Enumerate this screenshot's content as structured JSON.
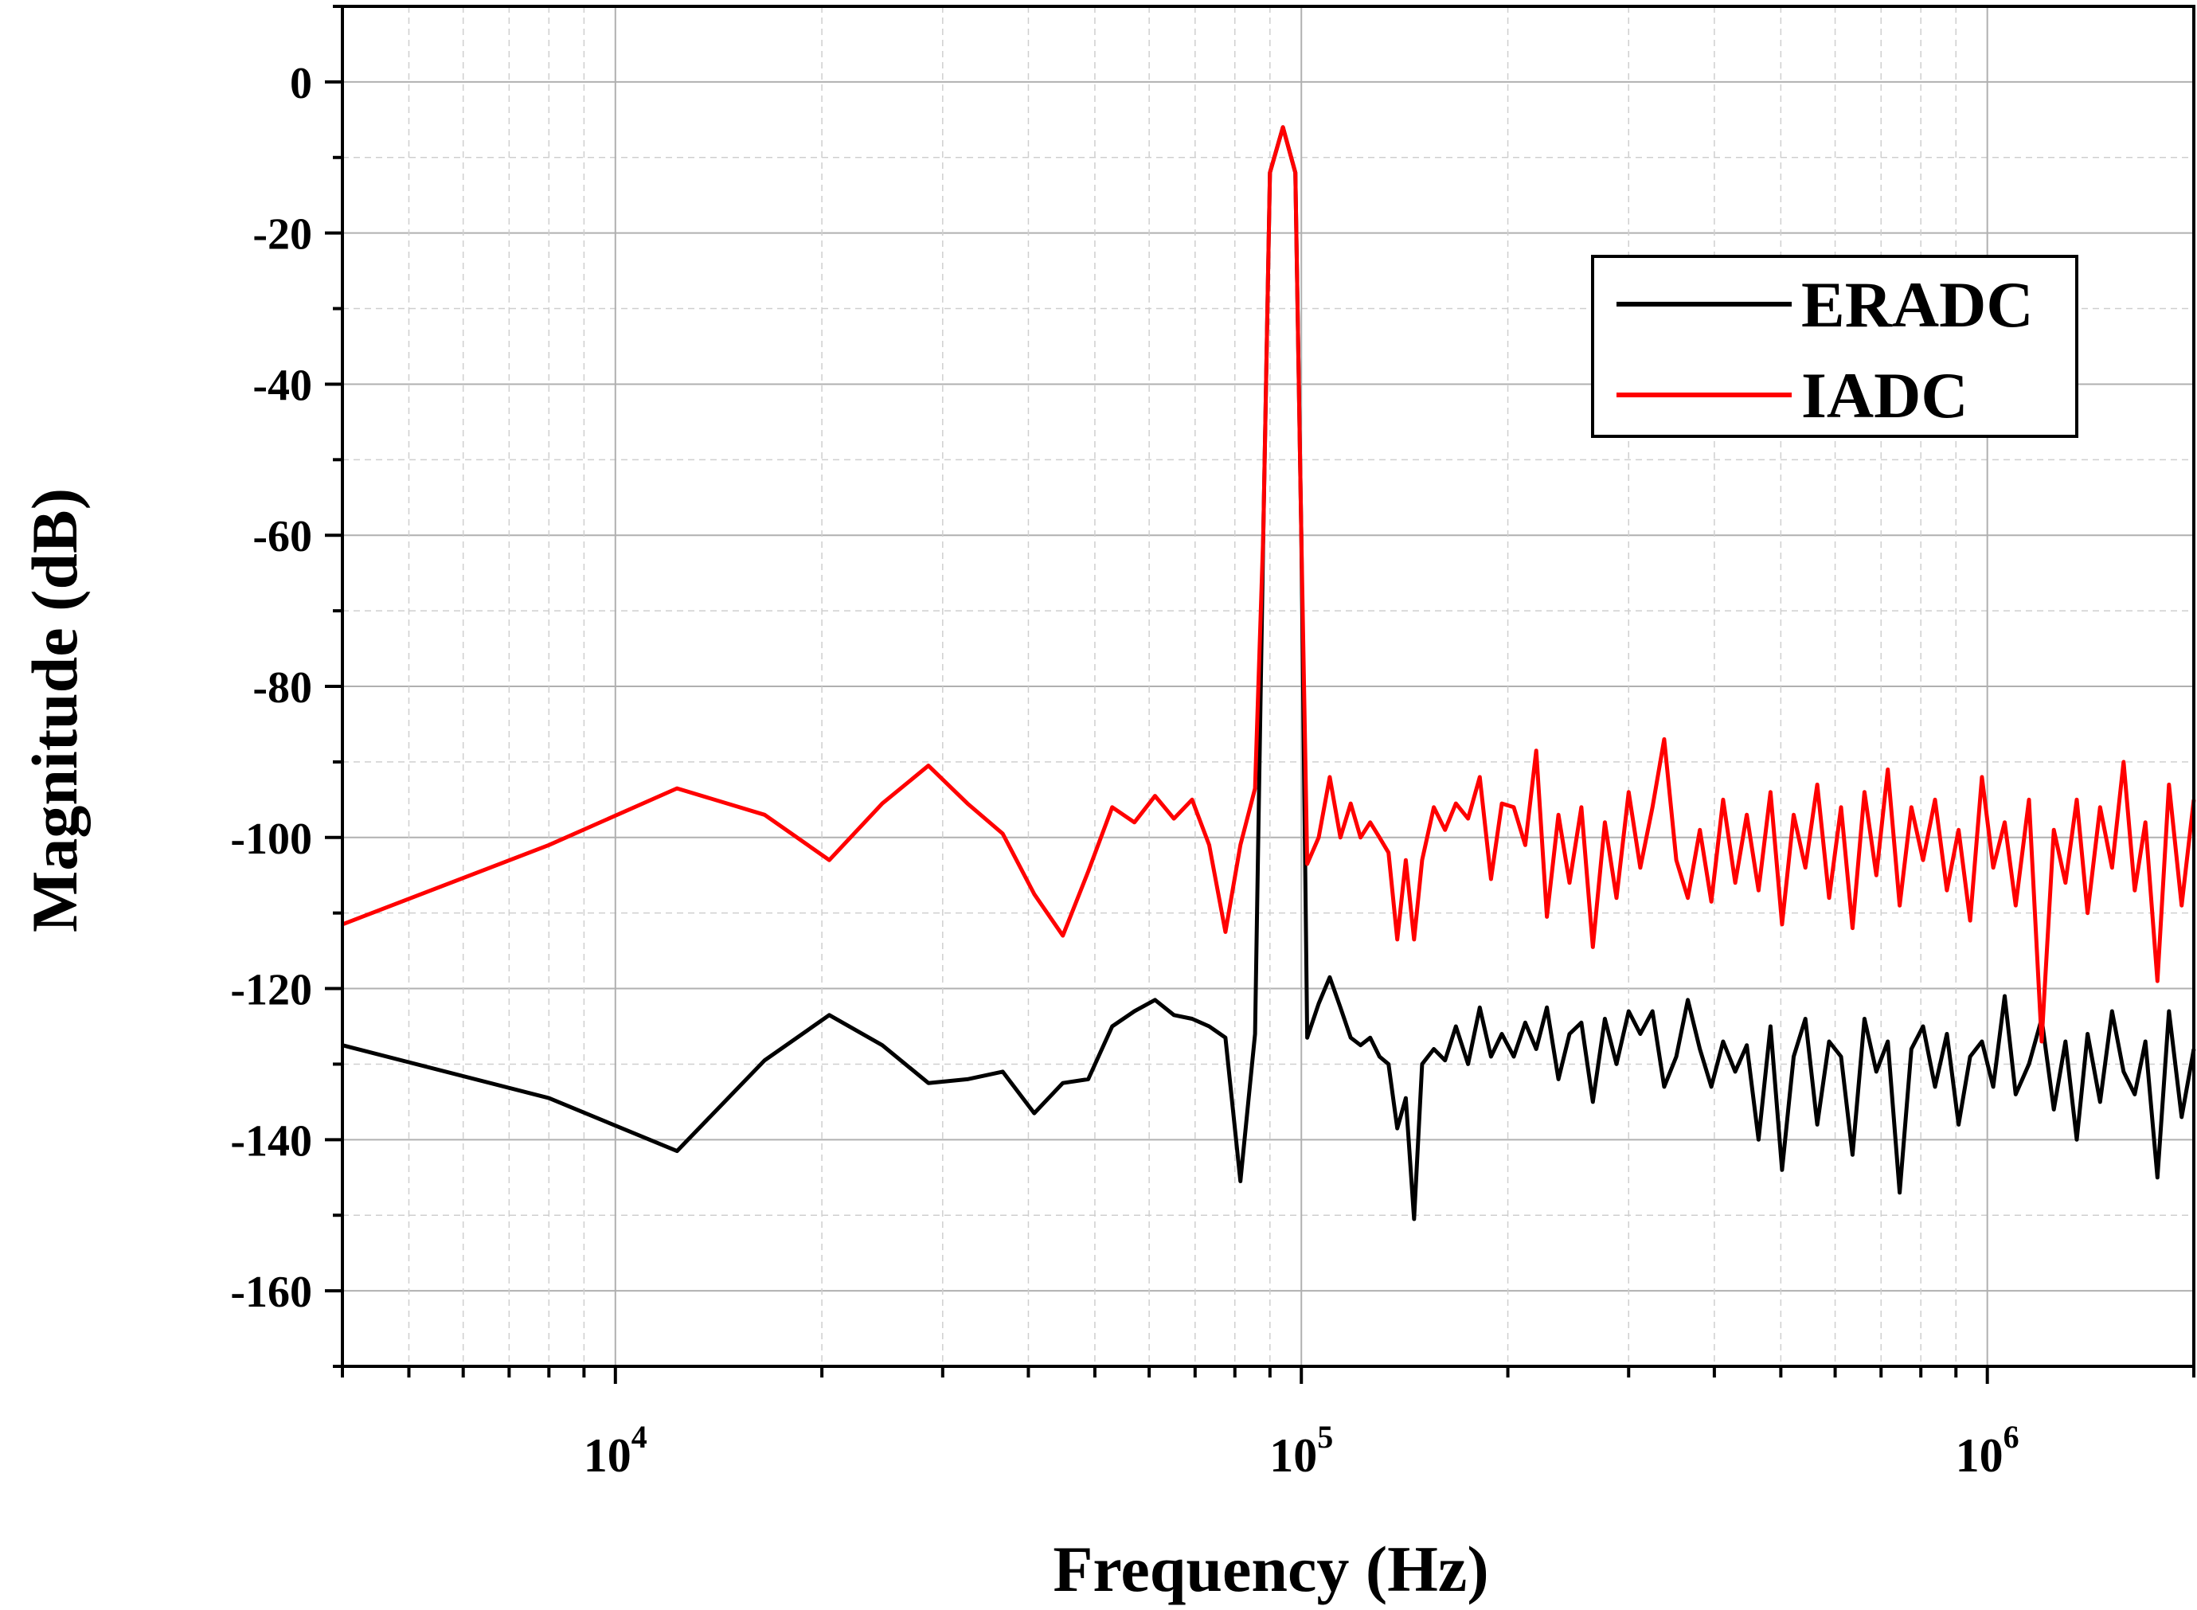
{
  "chart_data": {
    "type": "line",
    "title": "",
    "xlabel": "Frequency (Hz)",
    "ylabel": "Magnitude (dB)",
    "x_scale": "log",
    "xlim": [
      4000,
      2000000
    ],
    "ylim": [
      -170,
      10
    ],
    "x_ticks": [
      10000,
      100000,
      1000000
    ],
    "x_tick_labels": [
      {
        "base": "10",
        "exp": "4"
      },
      {
        "base": "10",
        "exp": "5"
      },
      {
        "base": "10",
        "exp": "6"
      }
    ],
    "y_ticks": [
      0,
      -20,
      -40,
      -60,
      -80,
      -100,
      -120,
      -140,
      -160
    ],
    "y_tick_labels": [
      "0",
      "-20",
      "-40",
      "-60",
      "-80",
      "-100",
      "-120",
      "-140",
      "-160"
    ],
    "grid": true,
    "legend_position": "top-right",
    "series": [
      {
        "name": "ERADC",
        "color": "#000000",
        "points": [
          [
            4000,
            -127.5
          ],
          [
            8000,
            -134.5
          ],
          [
            12300,
            -141.5
          ],
          [
            16500,
            -129.5
          ],
          [
            20500,
            -123.5
          ],
          [
            24500,
            -127.5
          ],
          [
            28600,
            -132.5
          ],
          [
            32600,
            -132
          ],
          [
            36700,
            -131
          ],
          [
            40800,
            -136.5
          ],
          [
            44900,
            -132.5
          ],
          [
            48900,
            -132
          ],
          [
            53000,
            -125
          ],
          [
            57100,
            -123
          ],
          [
            61200,
            -121.5
          ],
          [
            65200,
            -123.5
          ],
          [
            69300,
            -124
          ],
          [
            73400,
            -125
          ],
          [
            77500,
            -126.5
          ],
          [
            81500,
            -145.5
          ],
          [
            85600,
            -126
          ],
          [
            88000,
            -60
          ],
          [
            90000,
            -12
          ],
          [
            94000,
            -6
          ],
          [
            98000,
            -12
          ],
          [
            100000,
            -60
          ],
          [
            102000,
            -126.5
          ],
          [
            106000,
            -122
          ],
          [
            110000,
            -118.5
          ],
          [
            114000,
            -122.5
          ],
          [
            118000,
            -126.5
          ],
          [
            122000,
            -127.5
          ],
          [
            126000,
            -126.5
          ],
          [
            130000,
            -129
          ],
          [
            134000,
            -130
          ],
          [
            138000,
            -138.5
          ],
          [
            142000,
            -134.5
          ],
          [
            146000,
            -150.5
          ],
          [
            150000,
            -130
          ],
          [
            156000,
            -128
          ],
          [
            162000,
            -129.5
          ],
          [
            168000,
            -125
          ],
          [
            175000,
            -130
          ],
          [
            182000,
            -122.5
          ],
          [
            189000,
            -129
          ],
          [
            196000,
            -126
          ],
          [
            204000,
            -129
          ],
          [
            212000,
            -124.5
          ],
          [
            220000,
            -128
          ],
          [
            228000,
            -122.5
          ],
          [
            237000,
            -132
          ],
          [
            246000,
            -126
          ],
          [
            256000,
            -124.5
          ],
          [
            266000,
            -135
          ],
          [
            277000,
            -124
          ],
          [
            288000,
            -130
          ],
          [
            300000,
            -123
          ],
          [
            312000,
            -126
          ],
          [
            325000,
            -123
          ],
          [
            338000,
            -133
          ],
          [
            352000,
            -129
          ],
          [
            366000,
            -121.5
          ],
          [
            381000,
            -128
          ],
          [
            396000,
            -133
          ],
          [
            412000,
            -127
          ],
          [
            429000,
            -131
          ],
          [
            446000,
            -127.5
          ],
          [
            464000,
            -140
          ],
          [
            483000,
            -125
          ],
          [
            502000,
            -144
          ],
          [
            522000,
            -129
          ],
          [
            543000,
            -124
          ],
          [
            565000,
            -138
          ],
          [
            588000,
            -127
          ],
          [
            612000,
            -129
          ],
          [
            636000,
            -142
          ],
          [
            662000,
            -124
          ],
          [
            689000,
            -131
          ],
          [
            716000,
            -127
          ],
          [
            745000,
            -147
          ],
          [
            775000,
            -128
          ],
          [
            806000,
            -125
          ],
          [
            839000,
            -133
          ],
          [
            873000,
            -126
          ],
          [
            908000,
            -138
          ],
          [
            944000,
            -129
          ],
          [
            982000,
            -127
          ],
          [
            1020000,
            -133
          ],
          [
            1060000,
            -121
          ],
          [
            1100000,
            -134
          ],
          [
            1150000,
            -130
          ],
          [
            1200000,
            -124
          ],
          [
            1250000,
            -136
          ],
          [
            1300000,
            -127
          ],
          [
            1350000,
            -140
          ],
          [
            1400000,
            -126
          ],
          [
            1460000,
            -135
          ],
          [
            1520000,
            -123
          ],
          [
            1580000,
            -131
          ],
          [
            1640000,
            -134
          ],
          [
            1700000,
            -127
          ],
          [
            1770000,
            -145
          ],
          [
            1840000,
            -123
          ],
          [
            1920000,
            -137
          ],
          [
            2000000,
            -128
          ]
        ]
      },
      {
        "name": "IADC",
        "color": "#ff0000",
        "points": [
          [
            4000,
            -111.5
          ],
          [
            8000,
            -101
          ],
          [
            12300,
            -93.5
          ],
          [
            16500,
            -97
          ],
          [
            20500,
            -103
          ],
          [
            24500,
            -95.5
          ],
          [
            28600,
            -90.5
          ],
          [
            32600,
            -95.5
          ],
          [
            36700,
            -99.5
          ],
          [
            40800,
            -107.5
          ],
          [
            44900,
            -113
          ],
          [
            48900,
            -104.5
          ],
          [
            53000,
            -96
          ],
          [
            57100,
            -98
          ],
          [
            61200,
            -94.5
          ],
          [
            65200,
            -97.5
          ],
          [
            69300,
            -95
          ],
          [
            73400,
            -101
          ],
          [
            77500,
            -112.5
          ],
          [
            81500,
            -101
          ],
          [
            85600,
            -93.5
          ],
          [
            88000,
            -60
          ],
          [
            90000,
            -12
          ],
          [
            94000,
            -6
          ],
          [
            98000,
            -12
          ],
          [
            100000,
            -60
          ],
          [
            102000,
            -103.5
          ],
          [
            106000,
            -100
          ],
          [
            110000,
            -92
          ],
          [
            114000,
            -100
          ],
          [
            118000,
            -95.5
          ],
          [
            122000,
            -100
          ],
          [
            126000,
            -98
          ],
          [
            130000,
            -100
          ],
          [
            134000,
            -102
          ],
          [
            138000,
            -113.5
          ],
          [
            142000,
            -103
          ],
          [
            146000,
            -113.5
          ],
          [
            150000,
            -103
          ],
          [
            156000,
            -96
          ],
          [
            162000,
            -99
          ],
          [
            168000,
            -95.5
          ],
          [
            175000,
            -97.5
          ],
          [
            182000,
            -92
          ],
          [
            189000,
            -105.5
          ],
          [
            196000,
            -95.5
          ],
          [
            204000,
            -96
          ],
          [
            212000,
            -101
          ],
          [
            220000,
            -88.5
          ],
          [
            228000,
            -110.5
          ],
          [
            237000,
            -97
          ],
          [
            246000,
            -106
          ],
          [
            256000,
            -96
          ],
          [
            266000,
            -114.5
          ],
          [
            277000,
            -98
          ],
          [
            288000,
            -108
          ],
          [
            300000,
            -94
          ],
          [
            312000,
            -104
          ],
          [
            325000,
            -96
          ],
          [
            338000,
            -87
          ],
          [
            352000,
            -103
          ],
          [
            366000,
            -108
          ],
          [
            381000,
            -99
          ],
          [
            396000,
            -108.5
          ],
          [
            412000,
            -95
          ],
          [
            429000,
            -106
          ],
          [
            446000,
            -97
          ],
          [
            464000,
            -107
          ],
          [
            483000,
            -94
          ],
          [
            502000,
            -111.5
          ],
          [
            522000,
            -97
          ],
          [
            543000,
            -104
          ],
          [
            565000,
            -93
          ],
          [
            588000,
            -108
          ],
          [
            612000,
            -96
          ],
          [
            636000,
            -112
          ],
          [
            662000,
            -94
          ],
          [
            689000,
            -105
          ],
          [
            716000,
            -91
          ],
          [
            745000,
            -109
          ],
          [
            775000,
            -96
          ],
          [
            806000,
            -103
          ],
          [
            839000,
            -95
          ],
          [
            873000,
            -107
          ],
          [
            908000,
            -99
          ],
          [
            944000,
            -111
          ],
          [
            982000,
            -92
          ],
          [
            1020000,
            -104
          ],
          [
            1060000,
            -98
          ],
          [
            1100000,
            -109
          ],
          [
            1150000,
            -95
          ],
          [
            1200000,
            -127
          ],
          [
            1250000,
            -99
          ],
          [
            1300000,
            -106
          ],
          [
            1350000,
            -95
          ],
          [
            1400000,
            -110
          ],
          [
            1460000,
            -96
          ],
          [
            1520000,
            -104
          ],
          [
            1580000,
            -90
          ],
          [
            1640000,
            -107
          ],
          [
            1700000,
            -98
          ],
          [
            1770000,
            -119
          ],
          [
            1840000,
            -93
          ],
          [
            1920000,
            -109
          ],
          [
            2000000,
            -95
          ]
        ]
      }
    ]
  }
}
